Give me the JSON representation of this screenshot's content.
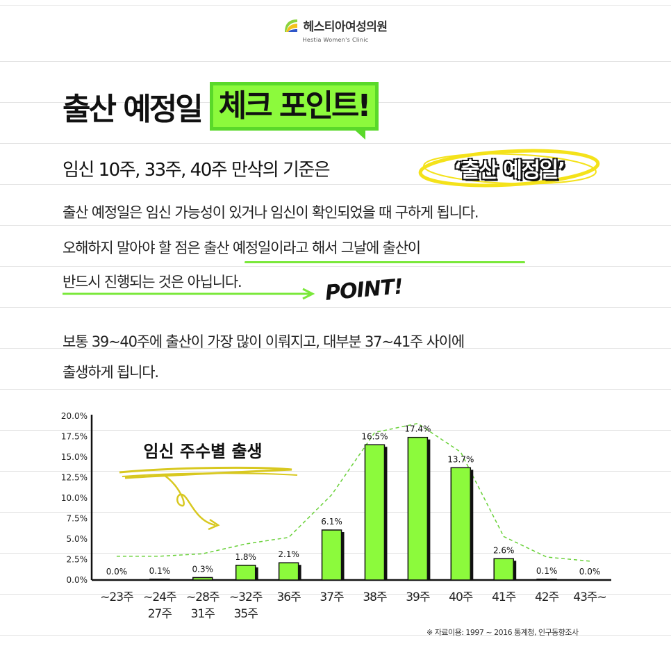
{
  "brand": {
    "name_ko": "헤스티아여성의원",
    "name_en": "Hestia Women's Clinic",
    "colors": {
      "leaf_green": "#8cd43c",
      "leaf_yellow": "#f3c21b",
      "leaf_blue": "#2e56c9"
    }
  },
  "headline": {
    "part1": "출산 예정일",
    "part2": "체크 포인트!"
  },
  "subhead": {
    "text": "임신 10주, 33주, 40주 만삭의 기준은",
    "highlight": "‘출산 예정일’"
  },
  "paragraph1": {
    "line1": "출산 예정일은 임신 가능성이 있거나 임신이 확인되었을 때 구하게 됩니다.",
    "line2": "오해하지 말아야 할 점은 출산 예정일이라고 해서 그날에 출산이",
    "line3": "반드시 진행되는 것은 아닙니다."
  },
  "point_badge": "POINT!",
  "paragraph2": {
    "line1": "보통 39~40주에 출산이 가장 많이 이뤄지고, 대부분 37~41주 사이에",
    "line2": "출생하게 됩니다."
  },
  "colors": {
    "accent_green": "#8cfa3c",
    "accent_border": "#5ad92a",
    "highlight_yellow": "#f4e21a",
    "trend_line": "#6ad13a"
  },
  "chart_data": {
    "type": "bar",
    "title": "임신 주수별 출생",
    "categories": [
      "~23주",
      "~24주\n27주",
      "~28주\n31주",
      "~32주\n35주",
      "36주",
      "37주",
      "38주",
      "39주",
      "40주",
      "41주",
      "42주",
      "43주~"
    ],
    "values": [
      0.0,
      0.1,
      0.3,
      1.8,
      2.1,
      6.1,
      16.5,
      17.4,
      13.7,
      2.6,
      0.1,
      0.0
    ],
    "data_labels": [
      "0.0%",
      "0.1%",
      "0.3%",
      "1.8%",
      "2.1%",
      "6.1%",
      "16.5%",
      "17.4%",
      "13.7%",
      "2.6%",
      "0.1%",
      "0.0%"
    ],
    "trend_line": {
      "style": "dashed",
      "values": [
        2.9,
        2.9,
        3.2,
        4.4,
        5.2,
        10.4,
        18.0,
        19.1,
        15.6,
        5.3,
        2.8,
        2.3
      ]
    },
    "yticks": [
      "0.0%",
      "2.5%",
      "5.0%",
      "7.5%",
      "10.0%",
      "12.5%",
      "15.0%",
      "17.5%",
      "20.0%"
    ],
    "ylim": [
      0,
      20
    ],
    "xlabel": "",
    "ylabel": "",
    "grid": false,
    "legend": "none",
    "bar_color": "#8cfa3c"
  },
  "source_note": "※ 자료이용: 1997 ~ 2016 통계청, 인구동향조사"
}
